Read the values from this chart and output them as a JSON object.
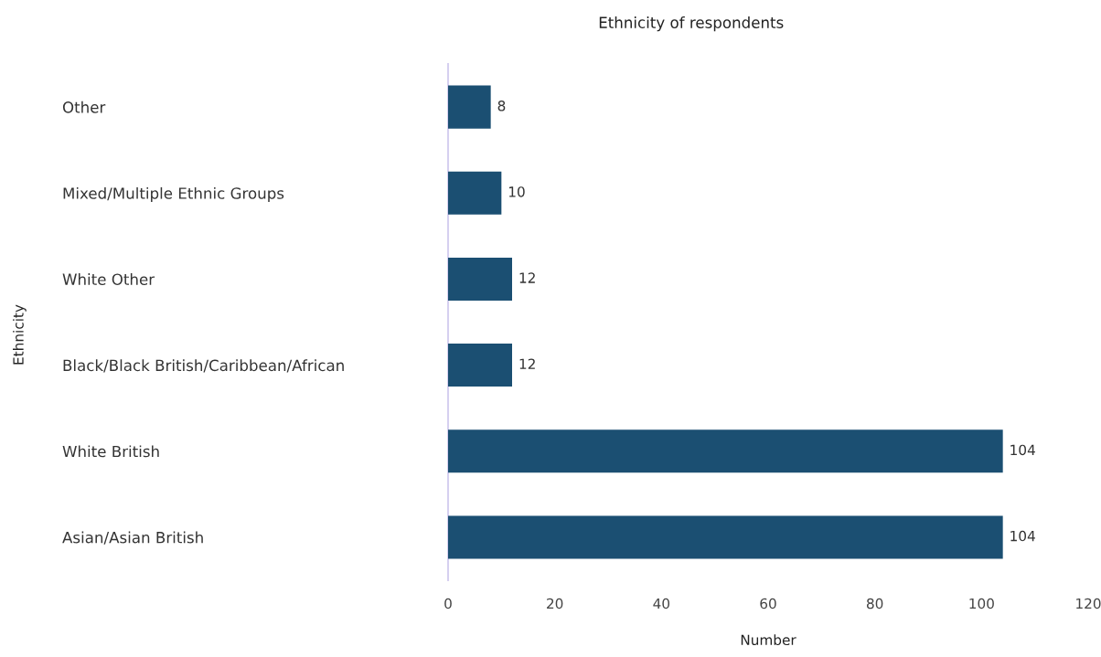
{
  "chart_data": {
    "type": "bar",
    "orientation": "horizontal",
    "title": "Ethnicity of respondents",
    "xlabel": "Number",
    "ylabel": "Ethnicity",
    "categories": [
      "Other",
      "Mixed/Multiple Ethnic Groups",
      "White Other",
      "Black/Black British/Caribbean/African",
      "White British",
      "Asian/Asian British"
    ],
    "values": [
      8,
      10,
      12,
      12,
      104,
      104
    ],
    "color": "#1b4f72",
    "xlim": [
      0,
      120
    ],
    "xticks": [
      0,
      20,
      40,
      60,
      80,
      100,
      120
    ],
    "data_labels": true,
    "grid": false,
    "legend": false
  }
}
